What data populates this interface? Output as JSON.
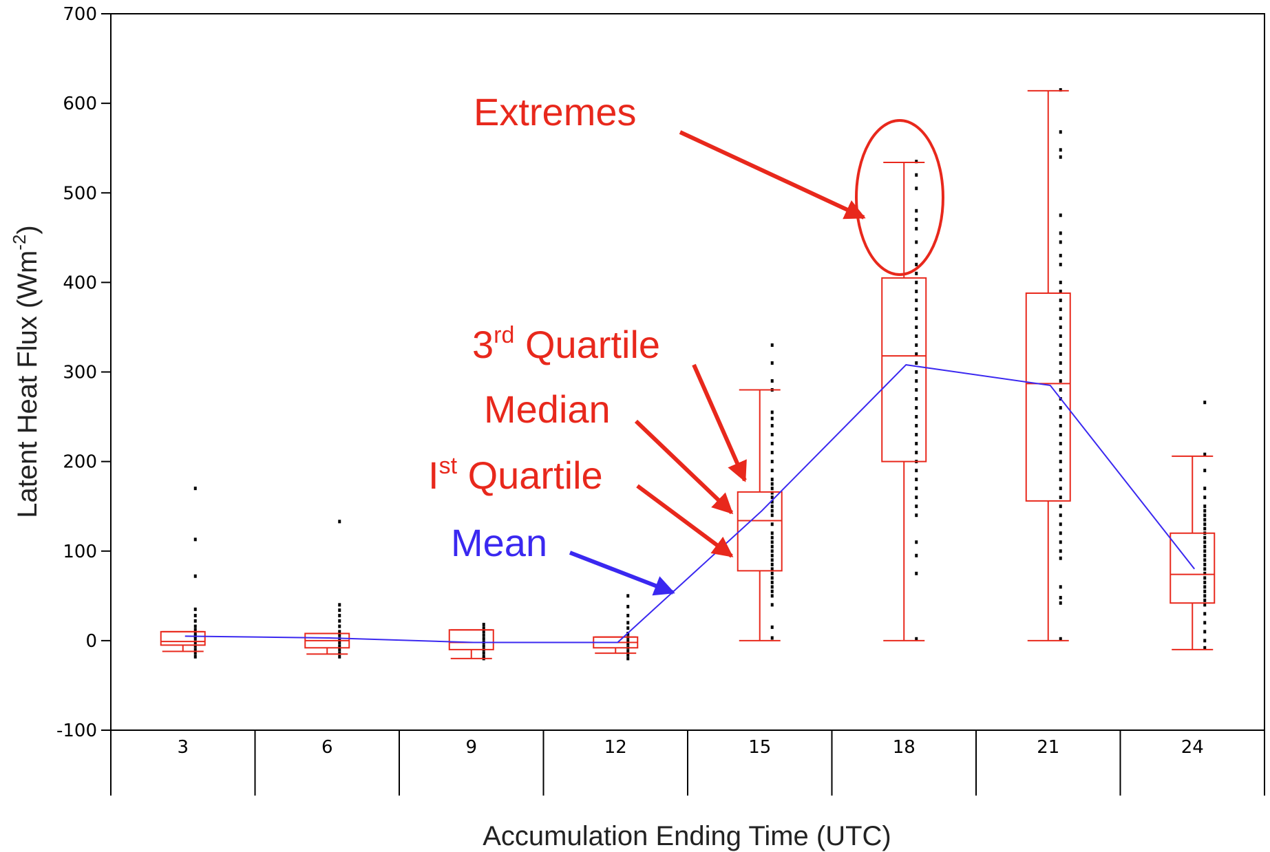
{
  "chart_data": {
    "type": "box",
    "xlabel": "Accumulation Ending Time (UTC)",
    "ylabel": "Latent Heat Flux (Wm-2)",
    "ylabel_parts": {
      "main": "Latent Heat Flux (Wm",
      "sup": "-2",
      "end": ")"
    },
    "ylim": [
      -100,
      700
    ],
    "yticks": [
      -100,
      0,
      100,
      200,
      300,
      400,
      500,
      600,
      700
    ],
    "categories": [
      "3",
      "6",
      "9",
      "12",
      "15",
      "18",
      "21",
      "24"
    ],
    "boxes": [
      {
        "category": "3",
        "min": -12,
        "q1": -5,
        "median": -1,
        "q3": 10,
        "max": 10
      },
      {
        "category": "6",
        "min": -15,
        "q1": -8,
        "median": 0,
        "q3": 8,
        "max": 8
      },
      {
        "category": "9",
        "min": -20,
        "q1": -10,
        "median": -2,
        "q3": 12,
        "max": 12
      },
      {
        "category": "12",
        "min": -14,
        "q1": -8,
        "median": -2,
        "q3": 4,
        "max": 4
      },
      {
        "category": "15",
        "min": 0,
        "q1": 78,
        "median": 134,
        "q3": 166,
        "max": 280
      },
      {
        "category": "18",
        "min": 0,
        "q1": 200,
        "median": 318,
        "q3": 405,
        "max": 534
      },
      {
        "category": "21",
        "min": 0,
        "q1": 156,
        "median": 287,
        "q3": 388,
        "max": 614
      },
      {
        "category": "24",
        "min": -10,
        "q1": 42,
        "median": 74,
        "q3": 120,
        "max": 206
      }
    ],
    "mean": {
      "name": "Mean",
      "values": [
        5,
        3,
        -2,
        -2,
        145,
        308,
        285,
        80
      ],
      "color": "#3a28f0"
    },
    "points": [
      {
        "category": "3",
        "values": [
          170,
          113,
          72,
          35,
          28,
          22,
          16,
          12,
          8,
          5,
          2,
          -2,
          -6,
          -10,
          -14,
          -18
        ]
      },
      {
        "category": "6",
        "values": [
          133,
          40,
          34,
          28,
          22,
          16,
          10,
          6,
          2,
          -2,
          -6,
          -10,
          -14,
          -18
        ]
      },
      {
        "category": "9",
        "values": [
          18,
          14,
          10,
          6,
          2,
          -2,
          -6,
          -10,
          -14,
          -18,
          -20
        ]
      },
      {
        "category": "12",
        "values": [
          50,
          38,
          28,
          20,
          14,
          8,
          4,
          0,
          -4,
          -8,
          -12,
          -16,
          -20
        ]
      },
      {
        "category": "15",
        "values": [
          330,
          310,
          290,
          280,
          255,
          248,
          240,
          230,
          220,
          210,
          200,
          190,
          180,
          175,
          170,
          165,
          160,
          155,
          150,
          145,
          140,
          130,
          120,
          115,
          110,
          105,
          100,
          95,
          90,
          85,
          80,
          75,
          70,
          65,
          60,
          55,
          50,
          40,
          15,
          3
        ]
      },
      {
        "category": "18",
        "values": [
          535,
          520,
          505,
          480,
          470,
          460,
          445,
          430,
          420,
          410,
          400,
          390,
          380,
          370,
          360,
          350,
          340,
          330,
          320,
          310,
          300,
          290,
          280,
          270,
          260,
          250,
          240,
          230,
          220,
          210,
          200,
          190,
          180,
          170,
          160,
          150,
          140,
          110,
          95,
          75,
          2
        ]
      },
      {
        "category": "21",
        "values": [
          615,
          568,
          548,
          540,
          475,
          455,
          445,
          430,
          420,
          400,
          390,
          380,
          370,
          360,
          350,
          340,
          330,
          320,
          310,
          300,
          290,
          280,
          270,
          260,
          250,
          240,
          230,
          220,
          210,
          200,
          190,
          180,
          170,
          160,
          150,
          140,
          130,
          120,
          110,
          100,
          92,
          60,
          48,
          42,
          2
        ]
      },
      {
        "category": "24",
        "values": [
          266,
          208,
          190,
          170,
          160,
          150,
          145,
          140,
          135,
          130,
          125,
          120,
          115,
          110,
          105,
          100,
          95,
          90,
          85,
          80,
          75,
          70,
          65,
          60,
          55,
          50,
          45,
          40,
          30,
          20,
          10,
          0,
          -8
        ]
      }
    ],
    "box_color": "#e8281c",
    "grid": false,
    "annotations": {
      "extremes": "Extremes",
      "third_quartile": {
        "main": "3",
        "sup": "rd",
        "end": " Quartile"
      },
      "median": "Median",
      "first_quartile": {
        "main": "I",
        "sup": "st",
        "end": " Quartile"
      },
      "mean": "Mean"
    }
  }
}
